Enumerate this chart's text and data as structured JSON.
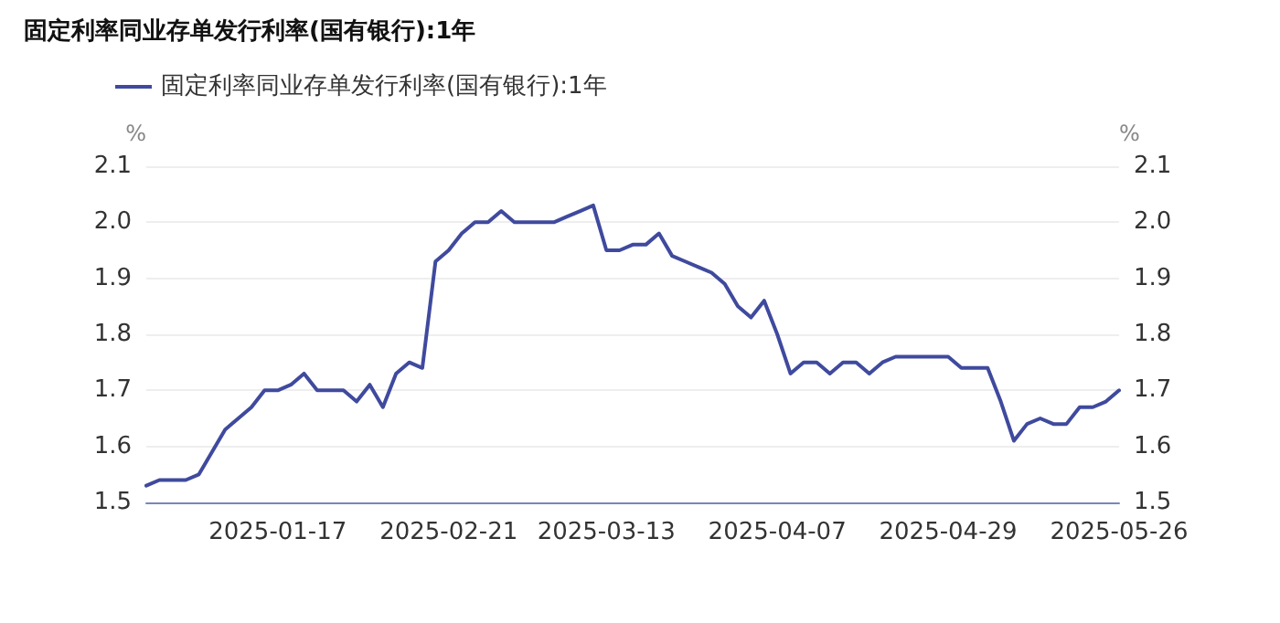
{
  "chart_data": {
    "type": "line",
    "title": "固定利率同业存单发行利率(国有银行):1年",
    "categories": [
      null,
      null,
      null,
      null,
      null,
      null,
      null,
      null,
      null,
      null,
      "2025-01-17",
      null,
      null,
      null,
      null,
      null,
      null,
      null,
      null,
      null,
      null,
      null,
      null,
      "2025-02-21",
      null,
      null,
      null,
      null,
      null,
      null,
      null,
      null,
      null,
      null,
      null,
      "2025-03-13",
      null,
      null,
      null,
      null,
      null,
      null,
      null,
      null,
      null,
      null,
      null,
      null,
      "2025-04-07",
      null,
      null,
      null,
      null,
      null,
      null,
      null,
      null,
      null,
      null,
      null,
      null,
      "2025-04-29",
      null,
      null,
      null,
      null,
      null,
      null,
      null,
      null,
      null,
      null,
      null,
      null,
      "2025-05-26"
    ],
    "series": [
      {
        "name": "固定利率同业存单发行利率(国有银行):1年",
        "color": "#3f4a9e",
        "values": [
          1.53,
          1.54,
          1.54,
          1.54,
          1.55,
          1.59,
          1.63,
          1.65,
          1.67,
          1.7,
          1.7,
          1.71,
          1.73,
          1.7,
          1.7,
          1.7,
          1.68,
          1.71,
          1.67,
          1.73,
          1.75,
          1.74,
          1.93,
          1.95,
          1.98,
          2.0,
          2.0,
          2.02,
          2.0,
          2.0,
          2.0,
          2.0,
          2.01,
          2.02,
          2.03,
          1.95,
          1.95,
          1.96,
          1.96,
          1.98,
          1.94,
          1.93,
          1.92,
          1.91,
          1.89,
          1.85,
          1.83,
          1.86,
          1.8,
          1.73,
          1.75,
          1.75,
          1.73,
          1.75,
          1.75,
          1.73,
          1.75,
          1.76,
          1.76,
          1.76,
          1.76,
          1.76,
          1.74,
          1.74,
          1.74,
          1.68,
          1.61,
          1.64,
          1.65,
          1.64,
          1.64,
          1.67,
          1.67,
          1.68,
          1.7
        ]
      }
    ],
    "ylabel": "%",
    "y2label": "%",
    "ylim": [
      1.5,
      2.1
    ],
    "yticks": [
      1.5,
      1.6,
      1.7,
      1.8,
      1.9,
      {
        "value": 2,
        "label": "2.0"
      },
      2.1
    ],
    "y2lim": [
      1.5,
      2.1
    ],
    "y2ticks": [
      1.5,
      1.6,
      1.7,
      1.8,
      1.9,
      {
        "value": 2,
        "label": "2.0"
      },
      2.1
    ],
    "grid": "y",
    "legend": "top left",
    "marker": "none",
    "line_style": "solid"
  }
}
